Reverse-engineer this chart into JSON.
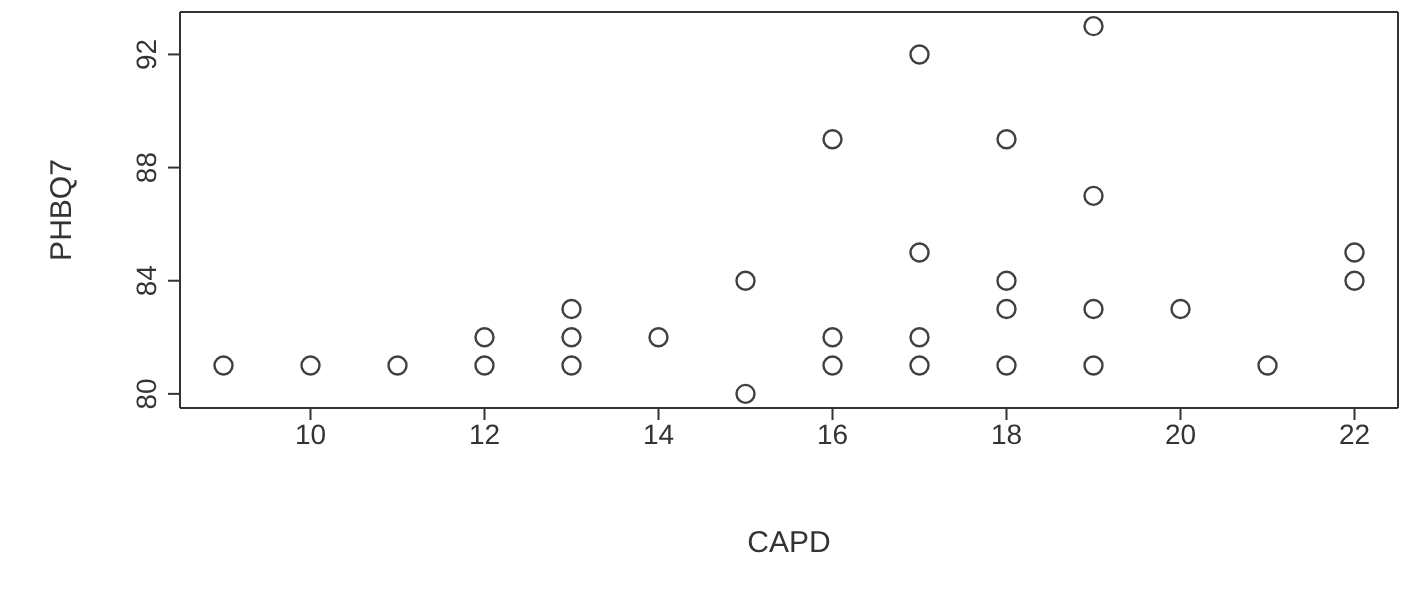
{
  "chart_data": {
    "type": "scatter",
    "xlabel": "CAPD",
    "ylabel": "PHBQ7",
    "x": [
      9,
      10,
      11,
      12,
      12,
      13,
      13,
      13,
      14,
      15,
      15,
      16,
      16,
      16,
      17,
      17,
      17,
      17,
      18,
      18,
      18,
      18,
      19,
      19,
      19,
      19,
      20,
      21,
      22,
      22
    ],
    "values": [
      81,
      81,
      81,
      82,
      81,
      83,
      82,
      81,
      82,
      84,
      80,
      89,
      82,
      81,
      92,
      85,
      82,
      81,
      89,
      84,
      83,
      81,
      93,
      87,
      83,
      81,
      83,
      81,
      85,
      84
    ],
    "color": "#404040",
    "marker": "circle",
    "xlim": [
      8.5,
      22.5
    ],
    "xticks": [
      10,
      12,
      14,
      16,
      18,
      20,
      22
    ],
    "ylim": [
      79.5,
      93.5
    ],
    "yticks": [
      80,
      84,
      88,
      92
    ]
  }
}
